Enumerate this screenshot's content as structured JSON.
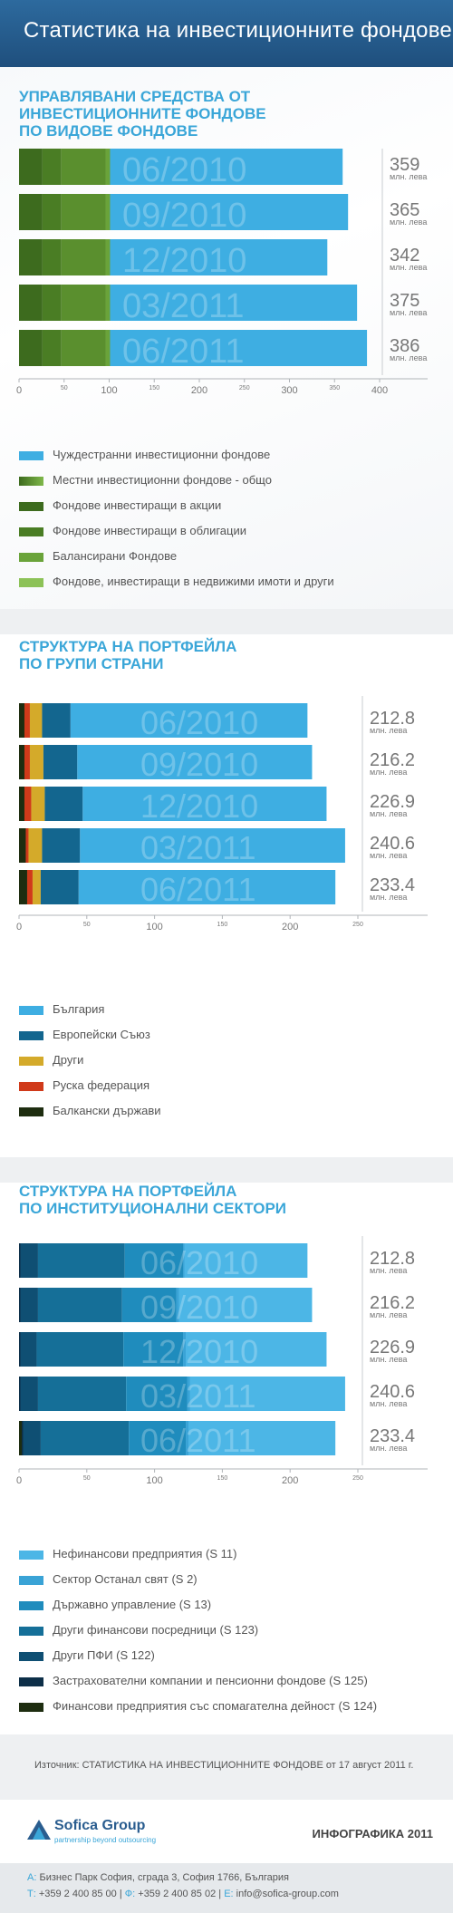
{
  "header": {
    "title": "Статистика на инвестиционните фондове"
  },
  "colors": {
    "accent": "#3aa6d8",
    "s1_series": [
      "#3d6b1e",
      "#4a7d24",
      "#5a8f2e",
      "#6aa33a",
      "#7fb84a",
      "#3eaee2"
    ],
    "s2_series": [
      "#1e2d10",
      "#d03a1a",
      "#d4aa2a",
      "#13668f",
      "#3eaee2"
    ],
    "s3_series": [
      "#1e2d10",
      "#0d2f48",
      "#0f4f73",
      "#156f98",
      "#1f8cbd",
      "#3aa3d6",
      "#4cb6e6"
    ]
  },
  "sections": [
    {
      "title_lines": [
        "УПРАВЛЯВАНИ СРЕДСТВА ОТ",
        "ИНВЕСТИЦИОННИТЕ ФОНДОВЕ",
        "ПО ВИДОВЕ ФОНДОВЕ"
      ],
      "legend": [
        {
          "label": "Чуждестранни инвестиционни фондове",
          "color": "#3eaee2"
        },
        {
          "label": "Местни инвестиционни фондове - общо",
          "color": "#3d6b1e",
          "color2": "#7fb84a"
        },
        {
          "label": "Фондове инвестиращи в акции",
          "color": "#3d6b1e"
        },
        {
          "label": "Фондове инвестиращи в облигации",
          "color": "#4a7d24"
        },
        {
          "label": "Балансирани Фондове",
          "color": "#6aa33a"
        },
        {
          "label": "Фондове, инвестиращи в недвижими имоти и други",
          "color": "#8cc257"
        }
      ]
    },
    {
      "title_lines": [
        "СТРУКТУРА НА ПОРТФЕЙЛА",
        "ПО ГРУПИ СТРАНИ"
      ],
      "legend": [
        {
          "label": "България",
          "color": "#3eaee2"
        },
        {
          "label": "Европейски Съюз",
          "color": "#13668f"
        },
        {
          "label": "Други",
          "color": "#d4aa2a"
        },
        {
          "label": "Руска федерация",
          "color": "#d03a1a"
        },
        {
          "label": "Балкански държави",
          "color": "#1e2d10"
        }
      ]
    },
    {
      "title_lines": [
        "СТРУКТУРА НА ПОРТФЕЙЛА",
        "ПО ИНСТИТУЦИОНАЛНИ СЕКТОРИ"
      ],
      "legend": [
        {
          "label": "Нефинансови предприятия  (S 11)",
          "color": "#4cb6e6"
        },
        {
          "label": "Сектор Останал свят  (S 2)",
          "color": "#3aa3d6"
        },
        {
          "label": "Държавно управление  (S 13)",
          "color": "#1f8cbd"
        },
        {
          "label": "Други финансови посредници (S 123)",
          "color": "#156f98"
        },
        {
          "label": "Други ПФИ  (S 122)",
          "color": "#0f4f73"
        },
        {
          "label": "Застрахователни компании и пенсионни фондове (S 125)",
          "color": "#0d2f48"
        },
        {
          "label": "Финансови предприятия със спомагателна дейност (S 124)",
          "color": "#1e2d10"
        }
      ]
    }
  ],
  "chart_data": [
    {
      "type": "bar",
      "orientation": "horizontal-stacked",
      "categories": [
        "06/2010",
        "09/2010",
        "12/2010",
        "03/2011",
        "06/2011"
      ],
      "totals": [
        359,
        365,
        342,
        375,
        386
      ],
      "total_labels": [
        "359",
        "365",
        "342",
        "375",
        "386"
      ],
      "unit": "млн. лева",
      "xlim": [
        0,
        400
      ],
      "xticks": [
        0,
        50,
        100,
        150,
        200,
        250,
        300,
        350,
        400
      ],
      "series": [
        {
          "name": "Фондове инвестиращи в акции",
          "values": [
            26,
            26,
            26,
            26,
            26
          ]
        },
        {
          "name": "Фондове инвестиращи в облигации",
          "values": [
            21,
            21,
            21,
            21,
            21
          ]
        },
        {
          "name": "Балансирани Фондове",
          "values": [
            49,
            49,
            49,
            49,
            49
          ]
        },
        {
          "name": "Фондове, инвестиращи в недвижими имоти и други",
          "values": [
            5,
            5,
            5,
            5,
            5
          ]
        },
        {
          "name": "Чуждестранни инвестиционни фондове",
          "values": [
            258,
            264,
            241,
            274,
            285
          ]
        }
      ]
    },
    {
      "type": "bar",
      "orientation": "horizontal-stacked",
      "categories": [
        "06/2010",
        "09/2010",
        "12/2010",
        "03/2011",
        "06/2011"
      ],
      "totals": [
        212.8,
        216.2,
        226.9,
        240.6,
        233.4
      ],
      "total_labels": [
        "212.8",
        "216.2",
        "226.9",
        "240.6",
        "233.4"
      ],
      "unit": "млн. лева",
      "xlim": [
        0,
        250
      ],
      "xticks": [
        0,
        50,
        100,
        150,
        200,
        250
      ],
      "series": [
        {
          "name": "Балкански държави",
          "values": [
            4,
            4,
            4,
            5,
            6
          ]
        },
        {
          "name": "Руска федерация",
          "values": [
            4,
            4,
            5,
            2,
            4
          ]
        },
        {
          "name": "Други",
          "values": [
            9,
            10,
            10,
            10,
            6
          ]
        },
        {
          "name": "Европейски Съюз",
          "values": [
            21,
            25,
            28,
            28,
            28
          ]
        },
        {
          "name": "България",
          "values": [
            174.8,
            173.2,
            179.9,
            195.6,
            189.4
          ]
        }
      ]
    },
    {
      "type": "bar",
      "orientation": "horizontal-stacked",
      "categories": [
        "06/2010",
        "09/2010",
        "12/2010",
        "03/2011",
        "06/2011"
      ],
      "totals": [
        212.8,
        216.2,
        226.9,
        240.6,
        233.4
      ],
      "total_labels": [
        "212.8",
        "216.2",
        "226.9",
        "240.6",
        "233.4"
      ],
      "unit": "млн. лева",
      "xlim": [
        0,
        250
      ],
      "xticks": [
        0,
        50,
        100,
        150,
        200,
        250
      ],
      "series": [
        {
          "name": "Финансови предприятия със спомагателна дейност (S 124)",
          "values": [
            0,
            0,
            0,
            0,
            2
          ]
        },
        {
          "name": "Застрахователни компании и пенсионни фондове (S 125)",
          "values": [
            1,
            1,
            1,
            1,
            1
          ]
        },
        {
          "name": "Други ПФИ  (S 122)",
          "values": [
            13,
            13,
            12,
            13,
            13
          ]
        },
        {
          "name": "Други финансови посредници (S 123)",
          "values": [
            64,
            62,
            64,
            65,
            65
          ]
        },
        {
          "name": "Държавно управление  (S 13)",
          "values": [
            43,
            40,
            44,
            45,
            42
          ]
        },
        {
          "name": "Сектор Останал свят  (S 2)",
          "values": [
            1,
            2,
            2,
            2,
            2
          ]
        },
        {
          "name": "Нефинансови предприятия  (S 11)",
          "values": [
            90.8,
            98.2,
            103.9,
            114.6,
            108.4
          ]
        }
      ]
    }
  ],
  "source": {
    "prefix": "Източник: ",
    "name": "СТАТИСТИКА НА ИНВЕСТИЦИОННИТЕ ФОНДОВЕ",
    "suffix": " от 17 август 2011 г."
  },
  "footer": {
    "logo_name": "Sofica Group",
    "logo_tagline": "partnership beyond outsourcing",
    "infographic_label": "ИНФОГРАФИКА 2011"
  },
  "contact": {
    "address_key": "А:",
    "address": "Бизнес Парк София, сграда 3, София 1766, България",
    "phone_key": "Т:",
    "phone": "+359 2 400 85 00",
    "fax_key": "Ф:",
    "fax": "+359 2 400 85 02",
    "email_key": "Е:",
    "email": "info@sofica-group.com"
  }
}
